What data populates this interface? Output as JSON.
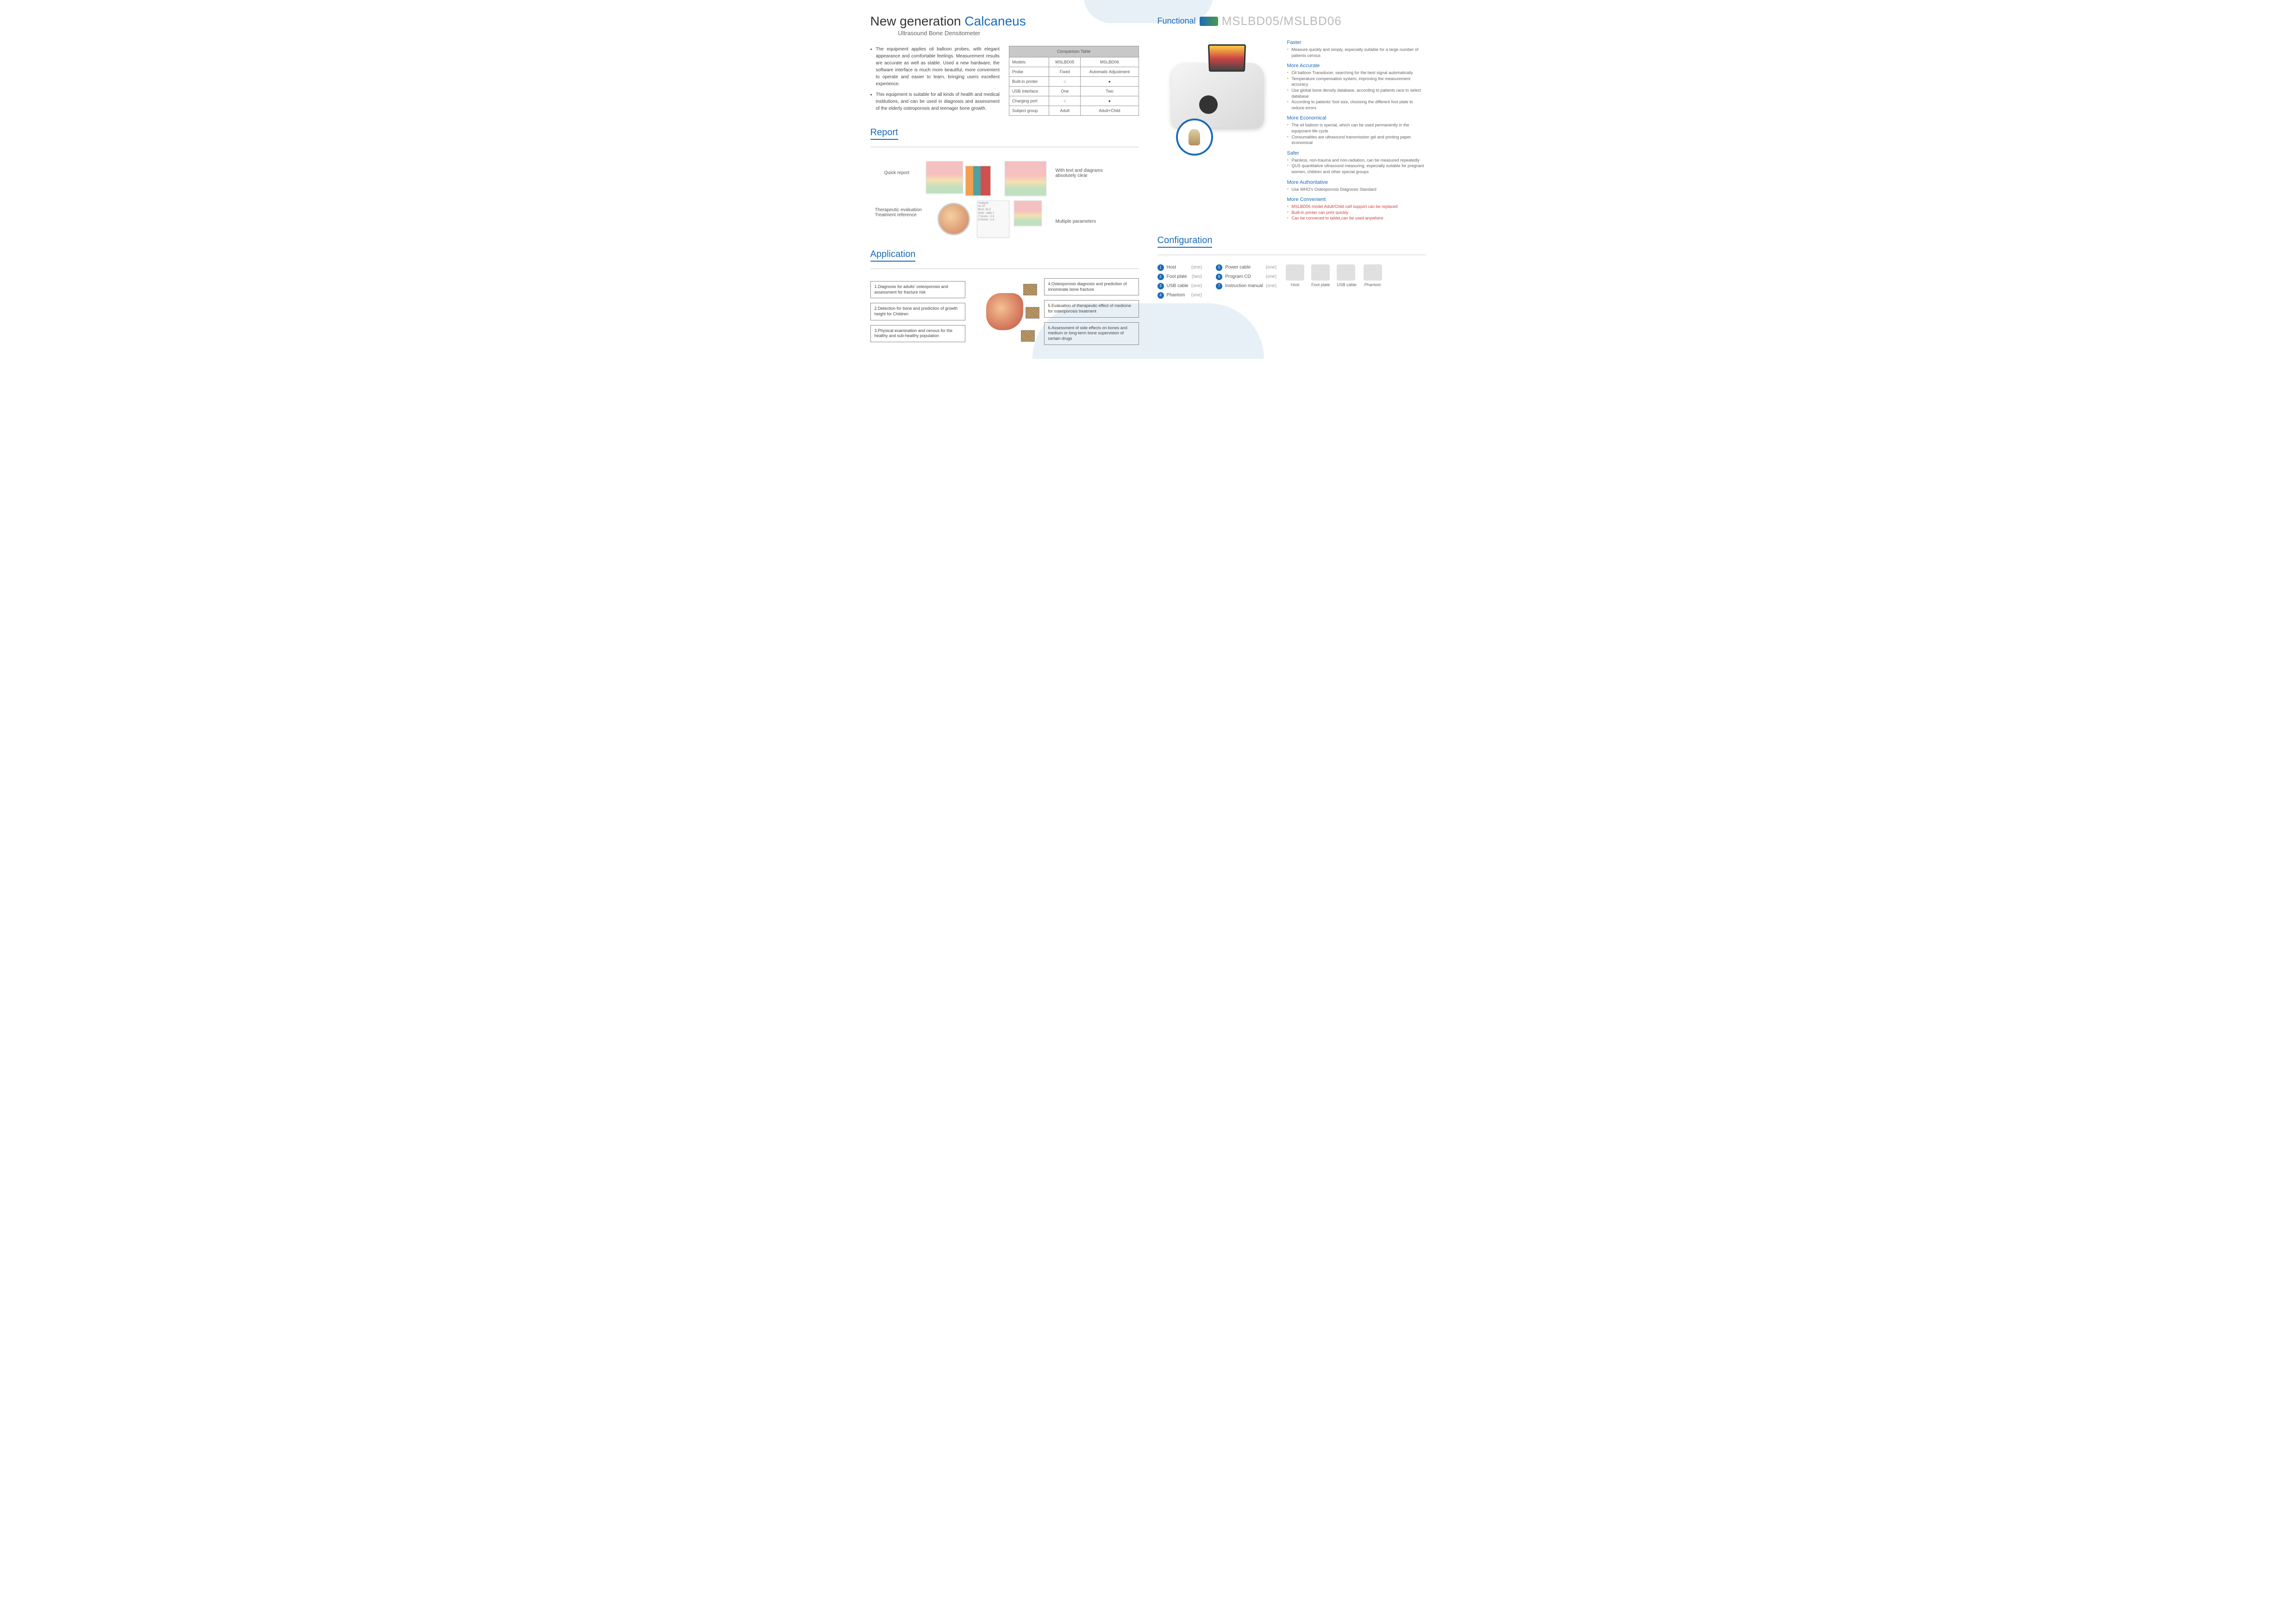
{
  "title": {
    "line1a": "New generation ",
    "line1b": "Calcaneus",
    "subtitle": "Ultrasound Bone Densitometer"
  },
  "intro": [
    "The equipment applies oil balloon probes, with elegant appearance and comfortable feelings. Measurement results are accurate as well as stable. Used a new hardware, the software interface is much more beautiful, more convenient to operate and easier to learn, bringing users excellent experience.",
    "This equipment is suitable for all kinds of health and medical institutions, and can be used in diagnosis and assessment of the elderly osteoporosis and teenager bone growth."
  ],
  "compTable": {
    "title": "Comparison Table",
    "rows": [
      [
        "Models",
        "MSLBD05",
        "MSLBD06"
      ],
      [
        "Probe",
        "Fixed",
        "Automatic Adjustment"
      ],
      [
        "Built-in printer",
        "○",
        "●"
      ],
      [
        "USB Interface",
        "One",
        "Two"
      ],
      [
        "Charging port",
        "○",
        "●"
      ],
      [
        "Subject group",
        "Adult",
        "Adult+Child"
      ]
    ]
  },
  "sections": {
    "report": "Report",
    "application": "Application",
    "functional": "Functional",
    "configuration": "Configuration"
  },
  "reportLabels": {
    "quick": "Quick report",
    "text": "With text and diagrams absolutely clear",
    "therapeutic": "Therapeutic evaluation Treatment reference",
    "params": "Multiple parameters"
  },
  "applications": {
    "left": [
      "1.Diagnosis for adults' osteoporosis and assessment for fracture risk",
      "2.Detection for bone and prediction of growth height for Children",
      "3.Physical examination and census for the healthy and sub-healthy population"
    ],
    "right": [
      "4.Osteoporosis diagnosis and prediction of innominate bone fracture",
      "5.Evaluation of therapeutic effect of medicine for osteoporosis treatment",
      "6.Assessment of side effects on bones and medium or long-term bone supervision of certain drugs"
    ]
  },
  "funcModels": "MSLBD05/MSLBD06",
  "features": [
    {
      "title": "Faster",
      "items": [
        {
          "text": "Measure quickly and simply, especially suitable for a large number of patients census",
          "red": false
        }
      ]
    },
    {
      "title": "More Accurate",
      "items": [
        {
          "text": "Oil balloon Transducer, searching for the best signal automatically",
          "red": false
        },
        {
          "text": "Temperature compensation system, improving the measurement accuracy",
          "red": false
        },
        {
          "text": "Use global bone density database, according to patients race to select database",
          "red": false
        },
        {
          "text": "According to patients' foot size, choosing the different foot plate to reduce errors",
          "red": false
        }
      ]
    },
    {
      "title": "More Economical",
      "items": [
        {
          "text": "The oil balloon is special, which can be used permanently in the equipment life cycle",
          "red": false
        },
        {
          "text": "Consumables are ultrasound transmission gel and printing paper, economical",
          "red": false
        }
      ]
    },
    {
      "title": "Safer",
      "items": [
        {
          "text": "Painless, non-trauma and non-radiation, can be measured repeatedly",
          "red": false
        },
        {
          "text": "QUS quantitative ultrasound measuring, especially suitable for pregnant women, children and other special groups",
          "red": false
        }
      ]
    },
    {
      "title": "More Authoritative",
      "items": [
        {
          "text": "Use WHO's Osteoporosis Diagnosis Standard",
          "red": false
        }
      ]
    },
    {
      "title": "More Convenient",
      "items": [
        {
          "text": "MSLBD06 model Adult/Child calf support can be replaced",
          "red": true
        },
        {
          "text": "Built-in printer can print quickly",
          "red": true
        },
        {
          "text": "Can be conneced to tablet,can be used anywhere",
          "red": true
        }
      ]
    }
  ],
  "config": {
    "col1": [
      {
        "n": "1",
        "name": "Host",
        "qty": "(one)"
      },
      {
        "n": "2",
        "name": "Foot plate",
        "qty": "(two)"
      },
      {
        "n": "3",
        "name": "USB cable",
        "qty": "(one)"
      },
      {
        "n": "4",
        "name": "Phantom",
        "qty": "(one)"
      }
    ],
    "col2": [
      {
        "n": "5",
        "name": "Power cable",
        "qty": "(one)"
      },
      {
        "n": "6",
        "name": "Program CD",
        "qty": "(one)"
      },
      {
        "n": "7",
        "name": "Instruction manual",
        "qty": "(one)"
      }
    ],
    "images": [
      "Host",
      "Foot plate",
      "USB cable",
      "Phantom"
    ]
  },
  "colors": {
    "primary": "#1a6bb8",
    "accent": "#f5a623",
    "red": "#d04040",
    "gray": "#c8c8c8"
  }
}
